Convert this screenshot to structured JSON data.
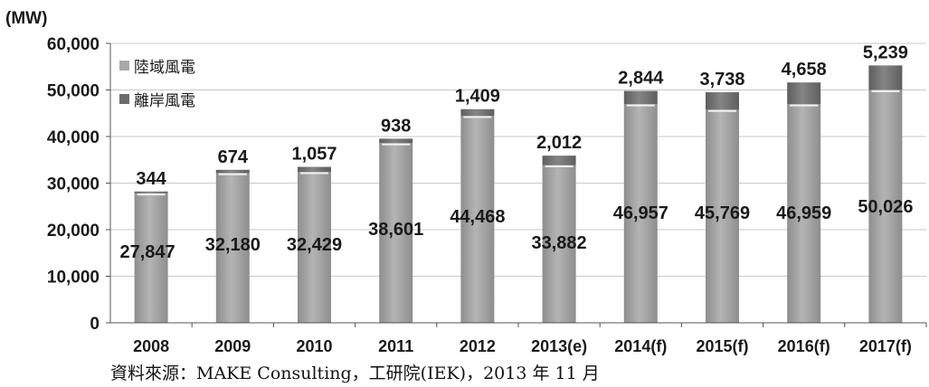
{
  "chart_data": {
    "type": "bar",
    "stacked": true,
    "unit_label": "(MW)",
    "categories": [
      "2008",
      "2009",
      "2010",
      "2011",
      "2012",
      "2013(e)",
      "2014(f)",
      "2015(f)",
      "2016(f)",
      "2017(f)"
    ],
    "series": [
      {
        "name": "陸域風電",
        "values": [
          27847,
          32180,
          32429,
          38601,
          44468,
          33882,
          46957,
          45769,
          46959,
          50026
        ],
        "color": "#9a9a9a"
      },
      {
        "name": "離岸風電",
        "values": [
          344,
          674,
          1057,
          938,
          1409,
          2012,
          2844,
          3738,
          4658,
          5239
        ],
        "color": "#6c6c6c"
      }
    ],
    "value_labels": {
      "onshore": [
        "27,847",
        "32,180",
        "32,429",
        "38,601",
        "44,468",
        "33,882",
        "46,957",
        "45,769",
        "46,959",
        "50,026"
      ],
      "offshore": [
        "344",
        "674",
        "1,057",
        "938",
        "1,409",
        "2,012",
        "2,844",
        "3,738",
        "4,658",
        "5,239"
      ]
    },
    "ylim": [
      0,
      60000
    ],
    "yticks": [
      0,
      10000,
      20000,
      30000,
      40000,
      50000,
      60000
    ],
    "ytick_labels": [
      "0",
      "10,000",
      "20,000",
      "30,000",
      "40,000",
      "50,000",
      "60,000"
    ],
    "grid": true,
    "legend_position": "top-left"
  },
  "source": "資料來源：MAKE Consulting，工研院(IEK)，2013 年 11 月"
}
